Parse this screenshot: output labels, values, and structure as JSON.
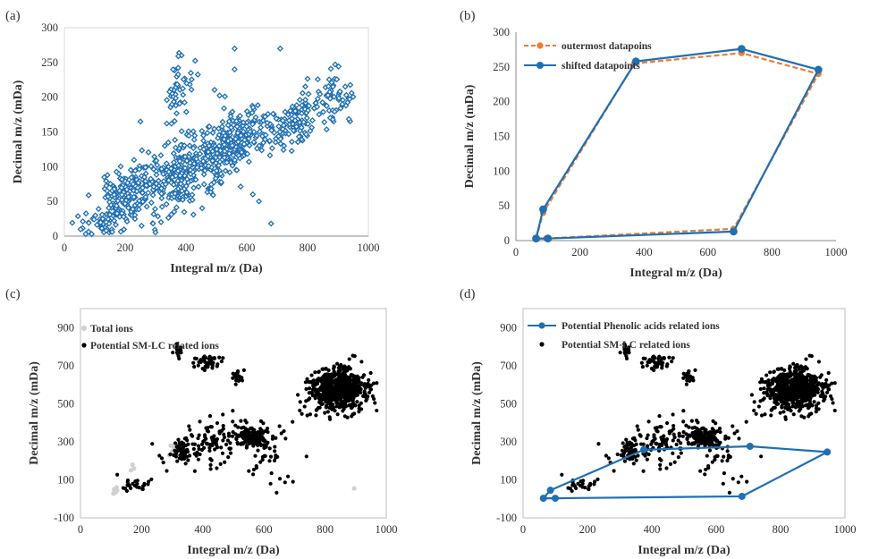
{
  "panel_labels": [
    "(a)",
    "(b)",
    "(c)",
    "(d)"
  ],
  "colors": {
    "blue": "#1f6fb4",
    "orange": "#ed7d31",
    "black": "#000000",
    "gray": "#d0d0d0",
    "axis": "#888888",
    "text": "#333333"
  },
  "chart_data": [
    {
      "panel": "(a)",
      "type": "scatter",
      "marker": "diamond-open",
      "title": "",
      "xlabel": "Integral m/z (Da)",
      "ylabel": "Decimal m/z (mDa)",
      "xlim": [
        0,
        1000
      ],
      "ylim": [
        0,
        300
      ],
      "xticks": [
        0,
        200,
        400,
        600,
        800,
        1000
      ],
      "yticks": [
        0,
        50,
        100,
        150,
        200,
        250,
        300
      ],
      "clusters": [
        {
          "cx": 200,
          "cy": 55,
          "sx": 45,
          "sy": 25,
          "rho": 0.5,
          "n": 200
        },
        {
          "cx": 380,
          "cy": 90,
          "sx": 55,
          "sy": 30,
          "rho": 0.45,
          "n": 260
        },
        {
          "cx": 550,
          "cy": 135,
          "sx": 55,
          "sy": 25,
          "rho": 0.45,
          "n": 260
        },
        {
          "cx": 750,
          "cy": 165,
          "sx": 50,
          "sy": 20,
          "rho": 0.5,
          "n": 120
        },
        {
          "cx": 880,
          "cy": 200,
          "sx": 35,
          "sy": 20,
          "rho": 0.3,
          "n": 60
        },
        {
          "cx": 370,
          "cy": 215,
          "sx": 25,
          "sy": 20,
          "rho": 0.2,
          "n": 45
        },
        {
          "cx": 120,
          "cy": 20,
          "sx": 35,
          "sy": 12,
          "rho": 0.3,
          "n": 30
        }
      ],
      "extra_points": [
        [
          560,
          270
        ],
        [
          710,
          270
        ],
        [
          680,
          18
        ],
        [
          640,
          50
        ],
        [
          70,
          3
        ],
        [
          90,
          3
        ],
        [
          250,
          165
        ],
        [
          560,
          240
        ],
        [
          620,
          60
        ]
      ]
    },
    {
      "panel": "(b)",
      "type": "line",
      "xlabel": "Integral m/z (Da)",
      "ylabel": "Decimal m/z (mDa)",
      "xlim": [
        0,
        1000
      ],
      "ylim": [
        0,
        300
      ],
      "xticks": [
        0,
        200,
        400,
        600,
        800,
        1000
      ],
      "yticks": [
        0,
        50,
        100,
        150,
        200,
        250,
        300
      ],
      "legend_position": "top-left",
      "series": [
        {
          "name": "outermost datapoins",
          "style": "dashed",
          "color": "orange",
          "x": [
            63,
            85,
            370,
            705,
            945,
            680,
            95,
            63
          ],
          "y": [
            3,
            40,
            255,
            270,
            240,
            17,
            3,
            3
          ]
        },
        {
          "name": "shifted datapoints",
          "style": "solid",
          "color": "blue",
          "x": [
            63,
            85,
            375,
            705,
            945,
            680,
            100,
            63
          ],
          "y": [
            3,
            45,
            258,
            276,
            246,
            13,
            3,
            3
          ]
        }
      ]
    },
    {
      "panel": "(c)",
      "type": "scatter",
      "xlabel": "Integral m/z (Da)",
      "ylabel": "Decimal m/z (mDa)",
      "xlim": [
        0,
        1000
      ],
      "ylim": [
        -100,
        1000
      ],
      "xticks": [
        0,
        200,
        400,
        600,
        800,
        1000
      ],
      "yticks": [
        -100,
        100,
        300,
        500,
        700,
        900
      ],
      "legend_position": "top-left",
      "series": [
        {
          "name": "Total ions",
          "color": "gray"
        },
        {
          "name": "Potential SM-LC related ions",
          "color": "black"
        }
      ],
      "gray_points": [
        [
          110,
          50
        ],
        [
          115,
          35
        ],
        [
          118,
          60
        ],
        [
          108,
          28
        ],
        [
          120,
          45
        ],
        [
          165,
          150
        ],
        [
          170,
          180
        ],
        [
          175,
          160
        ],
        [
          295,
          280
        ],
        [
          300,
          250
        ],
        [
          305,
          270
        ],
        [
          290,
          230
        ],
        [
          308,
          290
        ],
        [
          895,
          55
        ],
        [
          112,
          42
        ]
      ],
      "black_clusters": [
        {
          "cx": 840,
          "cy": 570,
          "sx": 45,
          "sy": 55,
          "rho": 0,
          "n": 600
        },
        {
          "cx": 320,
          "cy": 780,
          "sx": 6,
          "sy": 15,
          "rho": 0,
          "n": 22
        },
        {
          "cx": 410,
          "cy": 720,
          "sx": 20,
          "sy": 20,
          "rho": 0,
          "n": 45
        },
        {
          "cx": 510,
          "cy": 640,
          "sx": 12,
          "sy": 18,
          "rho": 0,
          "n": 25
        },
        {
          "cx": 560,
          "cy": 320,
          "sx": 28,
          "sy": 30,
          "rho": 0,
          "n": 120
        },
        {
          "cx": 430,
          "cy": 300,
          "sx": 75,
          "sy": 60,
          "rho": 0.3,
          "n": 120
        },
        {
          "cx": 330,
          "cy": 250,
          "sx": 20,
          "sy": 30,
          "rho": 0,
          "n": 40
        },
        {
          "cx": 175,
          "cy": 70,
          "sx": 30,
          "sy": 25,
          "rho": 0,
          "n": 25
        },
        {
          "cx": 600,
          "cy": 250,
          "sx": 50,
          "sy": 110,
          "rho": 0,
          "n": 40
        }
      ]
    },
    {
      "panel": "(d)",
      "type": "scatter",
      "xlabel": "Integral m/z (Da)",
      "ylabel": "Decimal m/z (mDa)",
      "xlim": [
        0,
        1000
      ],
      "ylim": [
        -100,
        1000
      ],
      "xticks": [
        0,
        200,
        400,
        600,
        800,
        1000
      ],
      "yticks": [
        -100,
        100,
        300,
        500,
        700,
        900
      ],
      "legend_position": "top-left",
      "series": [
        {
          "name": "Potential Phenolic acids related ions",
          "color": "blue",
          "x": [
            63,
            85,
            375,
            705,
            945,
            680,
            100,
            63
          ],
          "y": [
            3,
            45,
            258,
            276,
            246,
            13,
            3,
            3
          ]
        },
        {
          "name": "Potential SM-LC related ions",
          "color": "black"
        }
      ]
    }
  ]
}
